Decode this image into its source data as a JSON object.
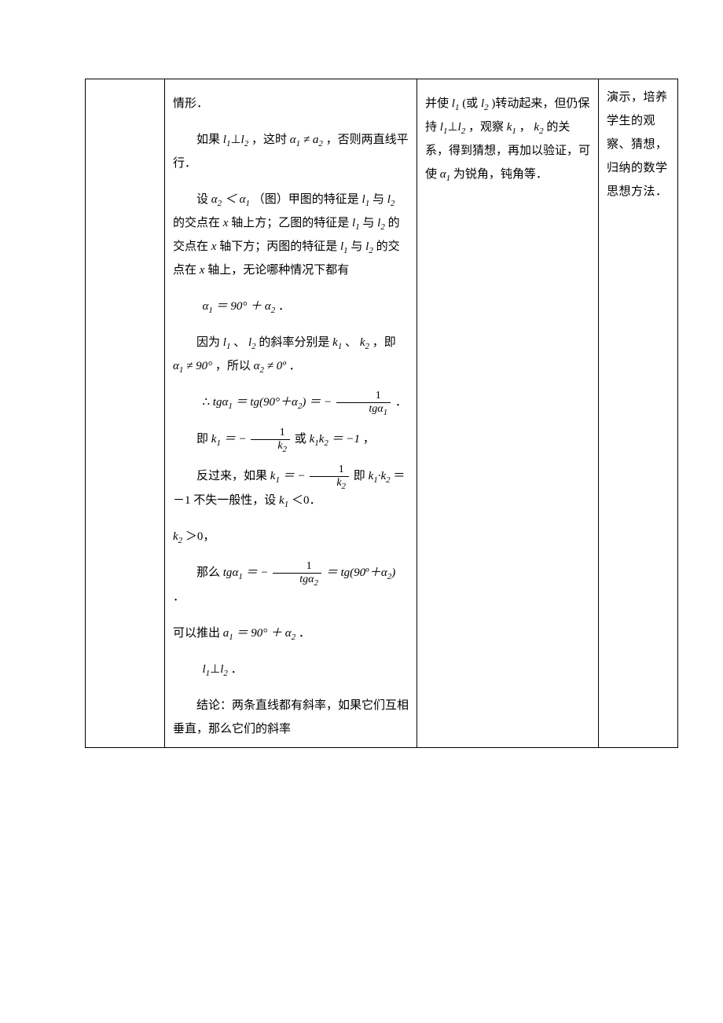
{
  "col1": "",
  "col2": {
    "p0": "情形．",
    "p1_a": "如果 ",
    "p1_b": "，这时",
    "p1_c": "，否则两直线平行．",
    "p2_a": "设",
    "p2_b": "（图）甲图的特征是  与  的交点在  轴上方；乙图的特征是  与  的交点在  轴下方；丙图的特征是  与  的交点在  轴上，无论哪种情况下都有",
    "p3_eq": "．",
    "p4_a": "因为 ",
    "p4_b": "、",
    "p4_c": " 的斜率分别是 ",
    "p4_d": "、",
    "p4_e": "，即",
    "p4_f": "，所以",
    "p4_g": "．",
    "p5_pre": "∴ ",
    "p5_post": "．",
    "p6_a": "即",
    "p6_b": "或",
    "p6_c": "，",
    "p7_a": "反过来，如果",
    "p7_b": "即",
    "p7_c": "＝－1 不失一般性，设 ",
    "p7_d": "＜0．",
    "p8": "＞0，",
    "p9_a": "那么",
    "p9_b": "．",
    "p10_a": "可以推出 ",
    "p10_b": "．",
    "p11": "．",
    "p12": "结论：两条直线都有斜率，如果它们互相垂直，那么它们的斜率"
  },
  "col3": {
    "p1_a": "并使 ",
    "p1_b": "(或 ",
    "p1_c": ")转动起来，但仍保持 ",
    "p1_d": "，观察 ",
    "p1_e": "，",
    "p1_f": "的关系，得到猜想，再加以验证，可使",
    "p1_g": "为锐角，钝角等．"
  },
  "col4": {
    "text": "演示，培养学生的观察、猜想，归纳的数学思想方法．"
  },
  "sym": {
    "l1": "l",
    "l1s": "1",
    "l2": "l",
    "l2s": "2",
    "k1": "k",
    "k1s": "1",
    "k2": "k",
    "k2s": "2",
    "x": "x",
    "a1": "α",
    "a1s": "1",
    "a2": "α",
    "a2s": "2",
    "aa1": "a",
    "aa1s": "1",
    "aa2": "a",
    "aa2s": "2",
    "perp": "⊥",
    "neq": "≠",
    "lt": "＜",
    "eq": "＝",
    "plus": "＋",
    "ninety": "90°",
    "ninety_plain": "90",
    "zero": "0º",
    "tg": "tg",
    "minus": "−",
    "one": "1",
    "dot": "·",
    "lp": "(",
    "rp": ")"
  }
}
